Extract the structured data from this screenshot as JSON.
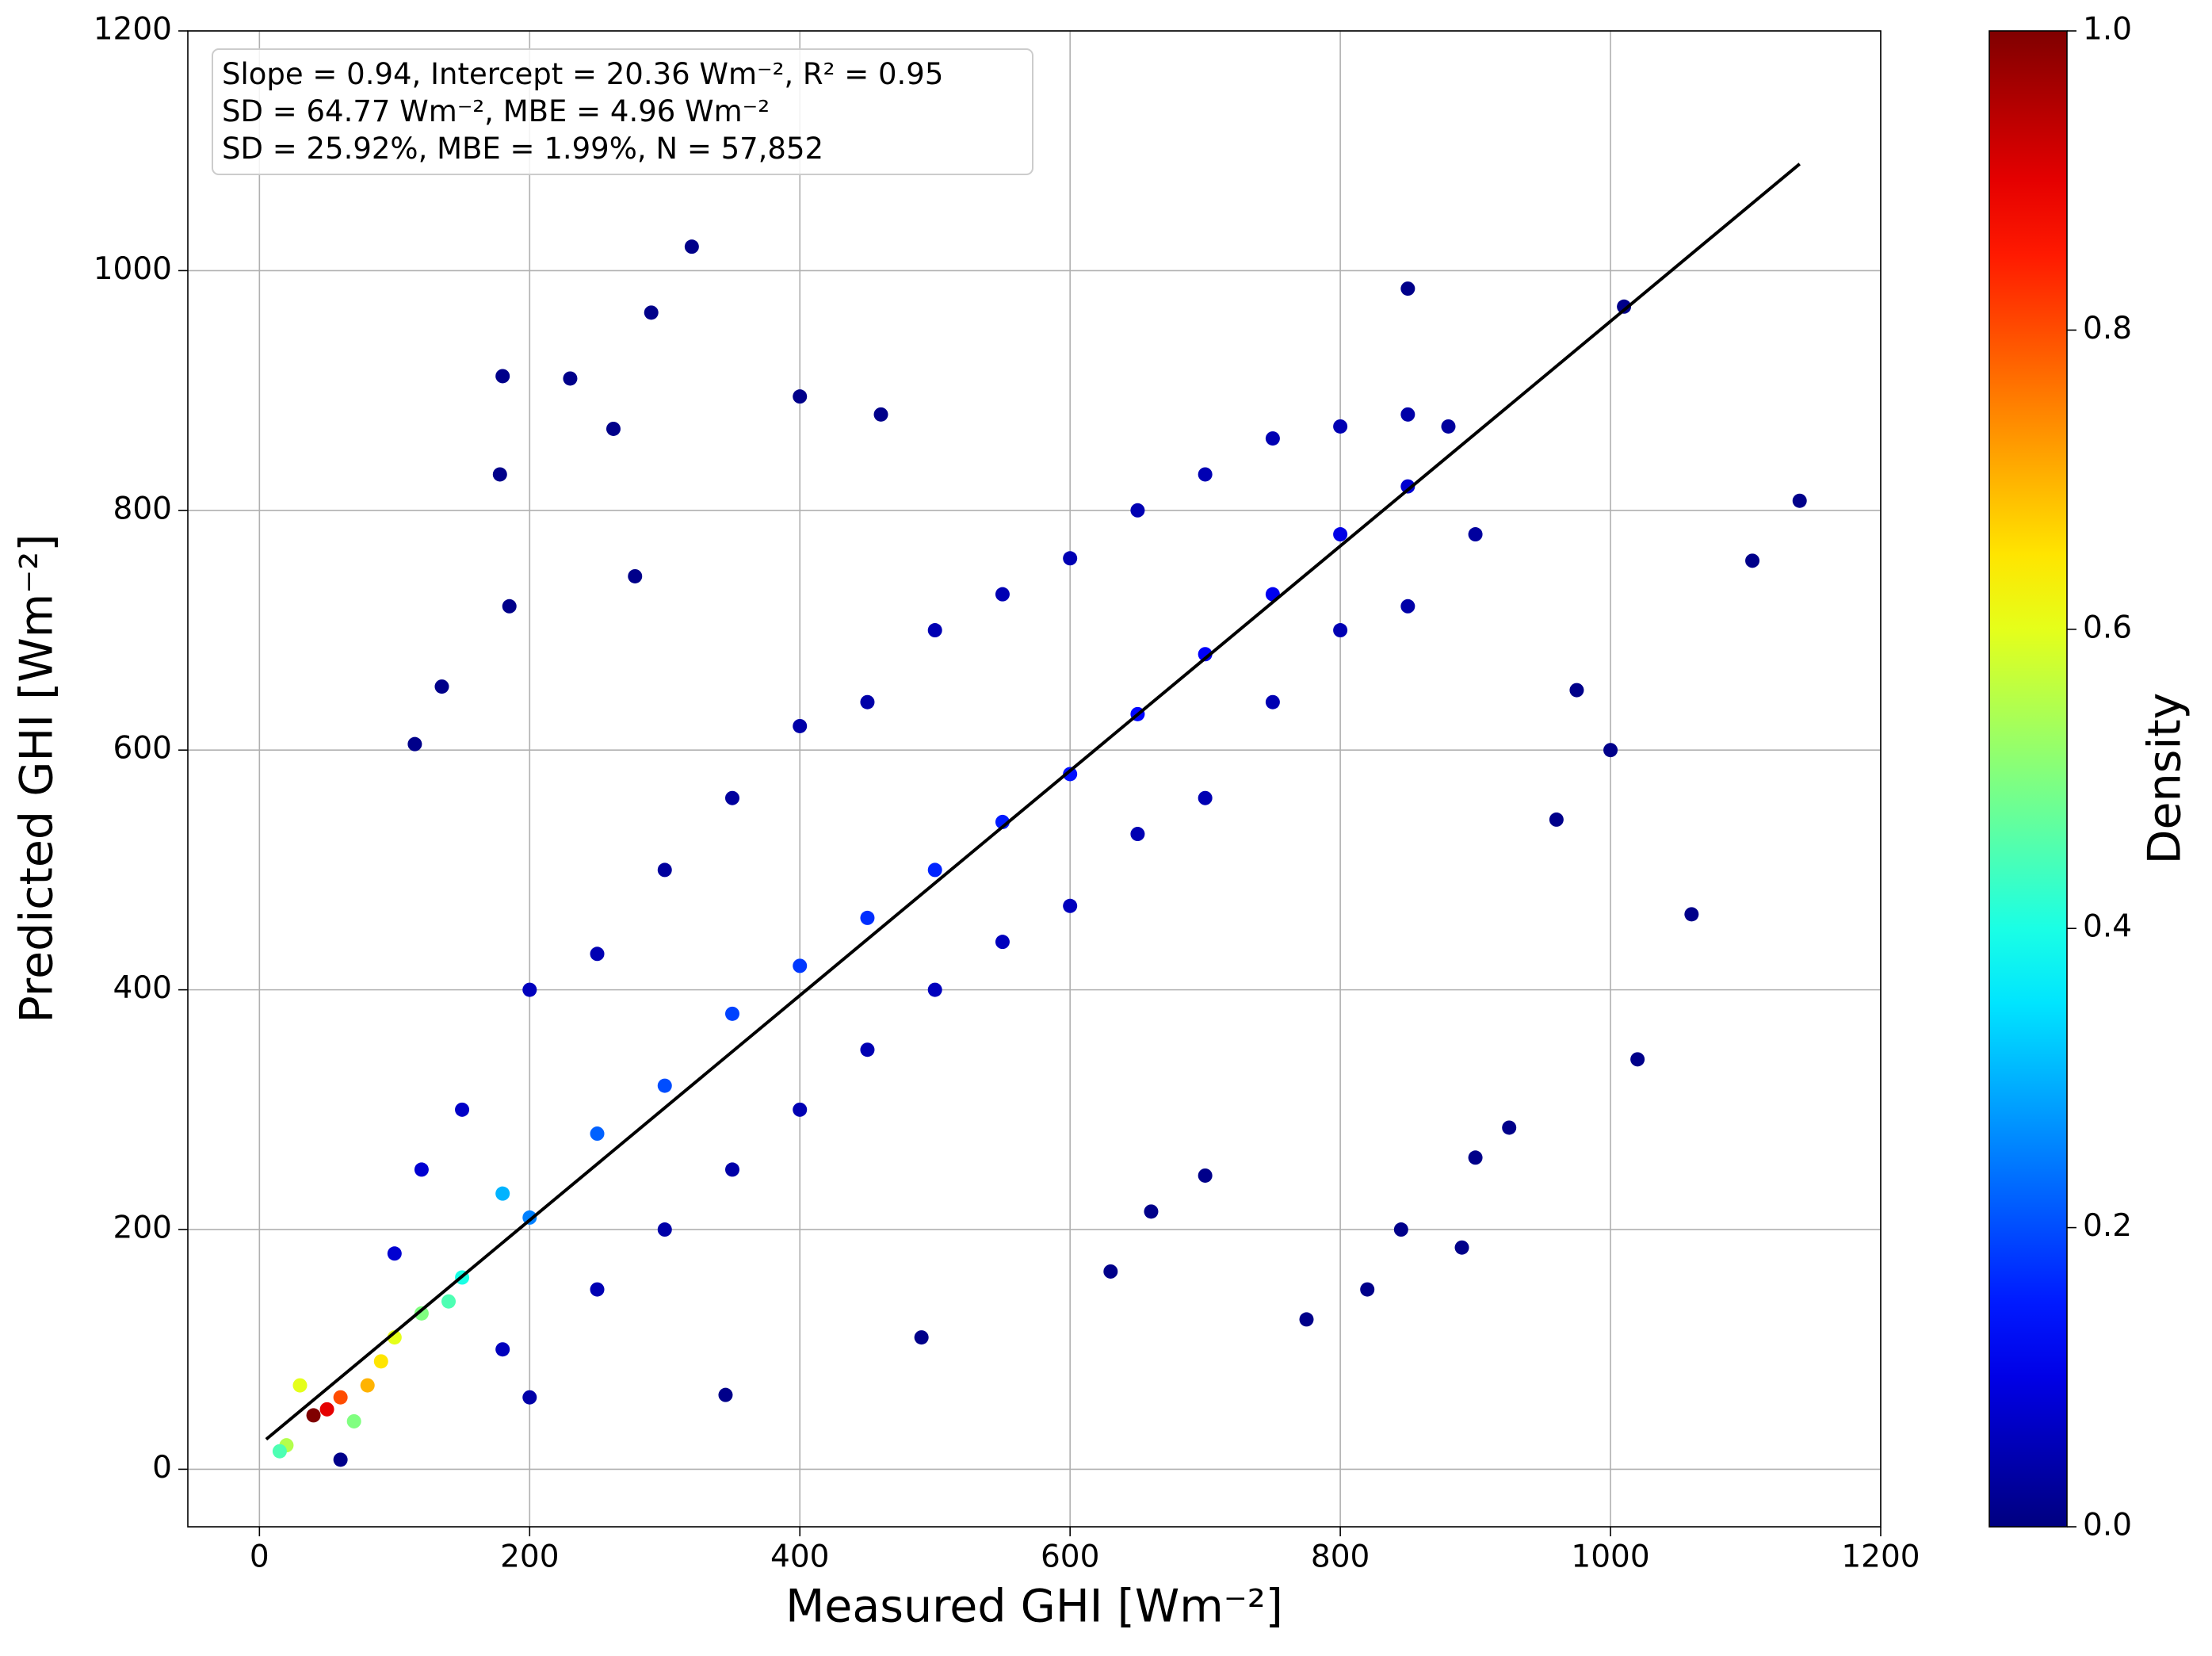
{
  "chart_data": {
    "type": "scatter",
    "xlabel": "Measured GHI [Wm⁻²]",
    "ylabel": "Predicted GHI [Wm⁻²]",
    "annotation": [
      "Slope = 0.94, Intercept = 20.36 Wm⁻², R² = 0.95",
      "SD = 64.77 Wm⁻², MBE  = 4.96 Wm⁻²",
      "SD = 25.92%, MBE  = 1.99%, N = 57,852"
    ],
    "xlim": [
      -53,
      1200
    ],
    "ylim": [
      -48,
      1200
    ],
    "xticks": [
      0,
      200,
      400,
      600,
      800,
      1000,
      1200
    ],
    "yticks": [
      0,
      200,
      400,
      600,
      800,
      1000,
      1200
    ],
    "grid": true,
    "colormap": "jet",
    "colorbar": {
      "label": "Density",
      "clim": [
        0,
        1
      ],
      "ticks": [
        {
          "value": 0,
          "label": "0.0"
        },
        {
          "value": 0.2,
          "label": "0.2"
        },
        {
          "value": 0.4,
          "label": "0.4"
        },
        {
          "value": 0.6,
          "label": "0.6"
        },
        {
          "value": 0.8,
          "label": "0.8"
        },
        {
          "value": 1,
          "label": "1.0"
        }
      ]
    },
    "points": {
      "x": [
        320,
        290,
        180,
        230,
        178,
        262,
        400,
        460,
        850,
        1010,
        1140,
        1105,
        1060,
        1020,
        925,
        900,
        845,
        820,
        775,
        890,
        490,
        345,
        60,
        115,
        135,
        185,
        278,
        1000,
        975,
        960,
        660,
        700,
        630,
        300,
        350,
        400,
        450,
        500,
        550,
        600,
        650,
        700,
        750,
        800,
        850,
        880,
        300,
        350,
        400,
        450,
        500,
        550,
        600,
        650,
        700,
        750,
        800,
        850,
        900,
        200,
        250,
        150,
        120,
        100,
        180,
        250,
        200,
        300,
        400,
        500,
        600,
        700,
        800,
        250,
        350,
        450,
        550,
        650,
        750,
        850,
        200,
        180,
        150,
        140,
        120,
        100,
        90,
        70,
        30,
        80,
        20,
        15,
        60,
        50,
        40
      ],
      "y": [
        1020,
        965,
        912,
        910,
        830,
        868,
        895,
        880,
        985,
        970,
        808,
        758,
        463,
        342,
        285,
        260,
        200,
        150,
        125,
        185,
        110,
        62,
        8,
        605,
        653,
        720,
        745,
        600,
        650,
        542,
        215,
        245,
        165,
        500,
        560,
        620,
        640,
        700,
        730,
        760,
        800,
        830,
        860,
        870,
        880,
        870,
        200,
        250,
        300,
        350,
        400,
        440,
        470,
        530,
        560,
        640,
        700,
        720,
        780,
        400,
        430,
        300,
        250,
        180,
        100,
        150,
        60,
        320,
        420,
        500,
        580,
        680,
        780,
        280,
        380,
        460,
        540,
        630,
        730,
        820,
        210,
        230,
        160,
        140,
        130,
        110,
        90,
        40,
        70,
        70,
        20,
        15,
        60,
        50,
        45
      ],
      "density": [
        0.01,
        0.01,
        0.01,
        0.01,
        0.01,
        0.01,
        0.01,
        0.01,
        0.01,
        0.01,
        0.01,
        0.01,
        0.01,
        0.01,
        0.01,
        0.01,
        0.01,
        0.01,
        0.01,
        0.01,
        0.01,
        0.01,
        0.01,
        0.01,
        0.01,
        0.01,
        0.01,
        0.01,
        0.01,
        0.01,
        0.01,
        0.01,
        0.01,
        0.03,
        0.03,
        0.04,
        0.04,
        0.05,
        0.05,
        0.05,
        0.05,
        0.05,
        0.05,
        0.05,
        0.04,
        0.03,
        0.04,
        0.04,
        0.05,
        0.05,
        0.06,
        0.06,
        0.06,
        0.05,
        0.05,
        0.05,
        0.05,
        0.04,
        0.03,
        0.06,
        0.05,
        0.07,
        0.08,
        0.08,
        0.06,
        0.05,
        0.04,
        0.2,
        0.18,
        0.16,
        0.14,
        0.12,
        0.1,
        0.22,
        0.19,
        0.17,
        0.15,
        0.13,
        0.11,
        0.08,
        0.25,
        0.3,
        0.4,
        0.45,
        0.5,
        0.6,
        0.65,
        0.5,
        0.6,
        0.7,
        0.55,
        0.45,
        0.8,
        0.9,
        1.0
      ]
    },
    "fit_line": {
      "type": "line",
      "x": [
        5,
        1140
      ],
      "y": [
        25,
        1089
      ],
      "color": "#000000"
    }
  }
}
